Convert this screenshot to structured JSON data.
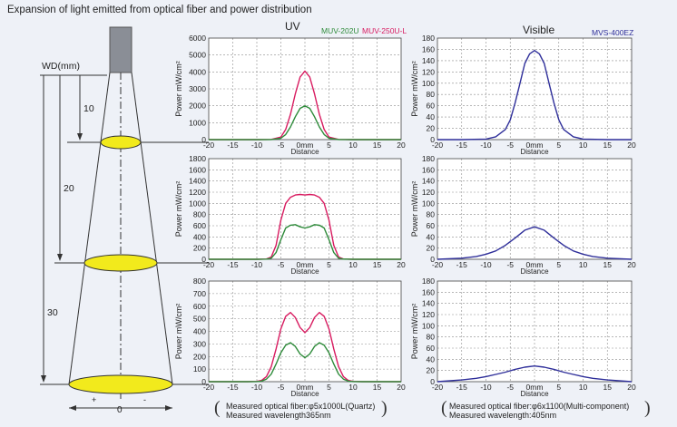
{
  "title": "Expansion of light emitted from optical fiber and power distribution",
  "column_headers": {
    "uv": "UV",
    "visible": "Visible"
  },
  "legend": {
    "uv": [
      {
        "name": "MUV-202U",
        "color": "#2e8b3a"
      },
      {
        "name": "MUV-250U-L",
        "color": "#d81b60"
      }
    ],
    "visible": [
      {
        "name": "MVS-400EZ",
        "color": "#2f2f9a"
      }
    ]
  },
  "diagram": {
    "wd_label": "WD(mm)",
    "distances": [
      "10",
      "20",
      "30"
    ],
    "bottom_labels": {
      "plus": "+",
      "zero": "0",
      "minus": "-"
    },
    "spot_color": "#f2ea1c",
    "fiber_color": "#8a8e96"
  },
  "notes": {
    "uv": {
      "line1": "Measured optical fiber:φ5x1000L(Quartz)",
      "line2": "Measured wavelength365nm"
    },
    "visible": {
      "line1": "Measured optical fiber:φ6x1100(Multi-component)",
      "line2": "Measured wavelength:405nm"
    }
  },
  "colors": {
    "grid": "#8c8c8c",
    "plot_bg": "#ffffff",
    "page_bg": "#eef1f7"
  },
  "chart_data": [
    {
      "type": "line",
      "column": "UV",
      "wd": "10",
      "x": [
        -20,
        -15,
        -10,
        -7,
        -5,
        -4,
        -3,
        -2,
        -1,
        0,
        1,
        2,
        3,
        4,
        5,
        7,
        10,
        15,
        20
      ],
      "xticks": [
        "-20",
        "-15",
        "-10",
        "-5",
        "0mm",
        "5",
        "10",
        "15",
        "20"
      ],
      "xlabel": "Distance",
      "ylabel": "Power  mW/cm²",
      "ylim": [
        0,
        6000
      ],
      "yticks": [
        "0",
        "1000",
        "2000",
        "3000",
        "4000",
        "5000",
        "6000"
      ],
      "series": [
        {
          "name": "MUV-250U-L",
          "color": "#d81b60",
          "values": [
            0,
            0,
            0,
            10,
            150,
            600,
            1500,
            2700,
            3700,
            4050,
            3700,
            2700,
            1500,
            600,
            150,
            10,
            0,
            0,
            0
          ]
        },
        {
          "name": "MUV-202U",
          "color": "#2e8b3a",
          "values": [
            0,
            0,
            0,
            5,
            80,
            300,
            750,
            1350,
            1850,
            2000,
            1850,
            1350,
            750,
            300,
            80,
            5,
            0,
            0,
            0
          ]
        }
      ]
    },
    {
      "type": "line",
      "column": "Visible",
      "wd": "10",
      "x": [
        -20,
        -15,
        -10,
        -8,
        -6,
        -5,
        -4,
        -3,
        -2,
        -1,
        0,
        1,
        2,
        3,
        4,
        5,
        6,
        8,
        10,
        15,
        20
      ],
      "xticks": [
        "-20",
        "-15",
        "-10",
        "-5",
        "0mm",
        "5",
        "10",
        "15",
        "20"
      ],
      "xlabel": "Distance",
      "ylabel": "Power  mW/cm²",
      "ylim": [
        0,
        180
      ],
      "yticks": [
        "0",
        "20",
        "40",
        "60",
        "80",
        "100",
        "120",
        "140",
        "160",
        "180"
      ],
      "series": [
        {
          "name": "MVS-400EZ",
          "color": "#2f2f9a",
          "values": [
            0,
            0,
            1,
            5,
            18,
            35,
            65,
            100,
            135,
            152,
            158,
            152,
            135,
            100,
            65,
            35,
            18,
            5,
            1,
            0,
            0
          ]
        }
      ]
    },
    {
      "type": "line",
      "column": "UV",
      "wd": "20",
      "x": [
        -20,
        -15,
        -10,
        -8,
        -7,
        -6,
        -5,
        -4,
        -3,
        -2,
        -1,
        0,
        1,
        2,
        3,
        4,
        5,
        6,
        7,
        8,
        10,
        15,
        20
      ],
      "xticks": [
        "-20",
        "-15",
        "-10",
        "-5",
        "0mm",
        "5",
        "10",
        "15",
        "20"
      ],
      "xlabel": "Distance",
      "ylabel": "Power  mW/cm²",
      "ylim": [
        0,
        1800
      ],
      "yticks": [
        "0",
        "200",
        "400",
        "600",
        "800",
        "1000",
        "1200",
        "1400",
        "1600",
        "1800"
      ],
      "series": [
        {
          "name": "MUV-250U-L",
          "color": "#d81b60",
          "values": [
            0,
            0,
            0,
            5,
            40,
            250,
            700,
            1000,
            1110,
            1150,
            1160,
            1150,
            1160,
            1150,
            1110,
            1000,
            700,
            250,
            40,
            5,
            0,
            0,
            0
          ]
        },
        {
          "name": "MUV-202U",
          "color": "#2e8b3a",
          "values": [
            0,
            0,
            0,
            3,
            20,
            120,
            350,
            560,
            610,
            620,
            580,
            560,
            580,
            620,
            610,
            560,
            350,
            120,
            20,
            3,
            0,
            0,
            0
          ]
        }
      ]
    },
    {
      "type": "line",
      "column": "Visible",
      "wd": "20",
      "x": [
        -20,
        -15,
        -12,
        -10,
        -8,
        -6,
        -4,
        -2,
        0,
        2,
        4,
        6,
        8,
        10,
        12,
        15,
        20
      ],
      "xticks": [
        "-20",
        "-15",
        "-10",
        "-5",
        "0mm",
        "5",
        "10",
        "15",
        "20"
      ],
      "xlabel": "Distance",
      "ylabel": "Power  mW/cm²",
      "ylim": [
        0,
        180
      ],
      "yticks": [
        "0",
        "20",
        "40",
        "60",
        "80",
        "100",
        "120",
        "140",
        "160",
        "180"
      ],
      "series": [
        {
          "name": "MVS-400EZ",
          "color": "#2f2f9a",
          "values": [
            0,
            2,
            5,
            9,
            15,
            25,
            38,
            52,
            58,
            52,
            38,
            25,
            15,
            9,
            5,
            2,
            0
          ]
        }
      ]
    },
    {
      "type": "line",
      "column": "UV",
      "wd": "30",
      "x": [
        -20,
        -15,
        -12,
        -10,
        -9,
        -8,
        -7,
        -6,
        -5,
        -4,
        -3,
        -2,
        -1,
        0,
        1,
        2,
        3,
        4,
        5,
        6,
        7,
        8,
        9,
        10,
        12,
        15,
        20
      ],
      "xticks": [
        "-20",
        "-15",
        "-10",
        "-5",
        "0mm",
        "5",
        "10",
        "15",
        "20"
      ],
      "xlabel": "Distance",
      "ylabel": "Power  mW/cm²",
      "ylim": [
        0,
        800
      ],
      "yticks": [
        "0",
        "100",
        "200",
        "300",
        "400",
        "500",
        "600",
        "700",
        "800"
      ],
      "series": [
        {
          "name": "MUV-250U-L",
          "color": "#d81b60",
          "values": [
            0,
            0,
            0,
            2,
            10,
            40,
            120,
            260,
            420,
            520,
            550,
            510,
            430,
            390,
            430,
            510,
            550,
            520,
            420,
            260,
            120,
            40,
            10,
            2,
            0,
            0,
            0
          ]
        },
        {
          "name": "MUV-202U",
          "color": "#2e8b3a",
          "values": [
            0,
            0,
            0,
            1,
            5,
            20,
            60,
            140,
            230,
            290,
            310,
            280,
            220,
            190,
            220,
            280,
            310,
            290,
            230,
            140,
            60,
            20,
            5,
            1,
            0,
            0,
            0
          ]
        }
      ]
    },
    {
      "type": "line",
      "column": "Visible",
      "wd": "30",
      "x": [
        -20,
        -15,
        -12,
        -10,
        -8,
        -6,
        -4,
        -2,
        0,
        2,
        4,
        6,
        8,
        10,
        12,
        15,
        20
      ],
      "xticks": [
        "-20",
        "-15",
        "-10",
        "-5",
        "0mm",
        "5",
        "10",
        "15",
        "20"
      ],
      "xlabel": "Distance",
      "ylabel": "Power  mW/cm²",
      "ylim": [
        0,
        180
      ],
      "yticks": [
        "0",
        "20",
        "40",
        "60",
        "80",
        "100",
        "120",
        "140",
        "160",
        "180"
      ],
      "series": [
        {
          "name": "MVS-400EZ",
          "color": "#2f2f9a",
          "values": [
            0,
            3,
            6,
            9,
            13,
            17,
            22,
            26,
            28,
            26,
            22,
            17,
            13,
            9,
            6,
            3,
            0
          ]
        }
      ]
    }
  ]
}
